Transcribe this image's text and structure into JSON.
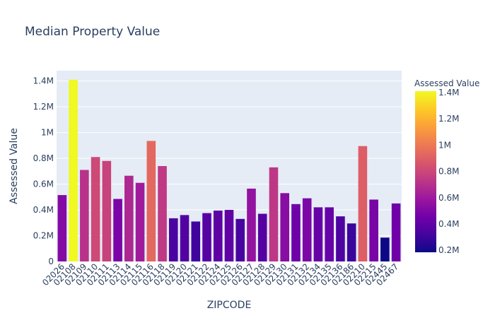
{
  "chart_data": {
    "type": "bar",
    "title": "Median Property Value",
    "xlabel": "ZIPCODE",
    "ylabel": "Assessed Value",
    "categories": [
      "02026",
      "02108",
      "02109",
      "02110",
      "02111",
      "02113",
      "02114",
      "02115",
      "02116",
      "02118",
      "02119",
      "02120",
      "02121",
      "02122",
      "02124",
      "02125",
      "02126",
      "02127",
      "02128",
      "02129",
      "02130",
      "02131",
      "02132",
      "02134",
      "02135",
      "02136",
      "02186",
      "02210",
      "02215",
      "02445",
      "02467"
    ],
    "values": [
      515000,
      1410000,
      710000,
      810000,
      780000,
      485000,
      665000,
      610000,
      935000,
      740000,
      335000,
      360000,
      310000,
      375000,
      395000,
      400000,
      330000,
      565000,
      370000,
      730000,
      530000,
      445000,
      490000,
      420000,
      420000,
      350000,
      295000,
      895000,
      480000,
      185000,
      450000
    ],
    "ylim": [
      0,
      1480000
    ],
    "y_ticks": [
      0,
      200000,
      400000,
      600000,
      800000,
      1000000,
      1200000,
      1400000
    ],
    "y_tick_labels": [
      "0",
      "0.2M",
      "0.4M",
      "0.6M",
      "0.8M",
      "1M",
      "1.2M",
      "1.4M"
    ],
    "colorbar": {
      "title": "Assessed Value",
      "range": [
        185000,
        1410000
      ],
      "ticks": [
        200000,
        400000,
        600000,
        800000,
        1000000,
        1200000,
        1400000
      ],
      "tick_labels": [
        "0.2M",
        "0.4M",
        "0.6M",
        "0.8M",
        "1M",
        "1.2M",
        "1.4M"
      ],
      "colorscale": [
        "#0d0887",
        "#46039f",
        "#7201a8",
        "#9c179e",
        "#bd3786",
        "#d8576b",
        "#ed7953",
        "#fb9f3a",
        "#fdca26",
        "#f0f921"
      ]
    },
    "grid": true,
    "plot_bgcolor": "#e5ecf6"
  }
}
